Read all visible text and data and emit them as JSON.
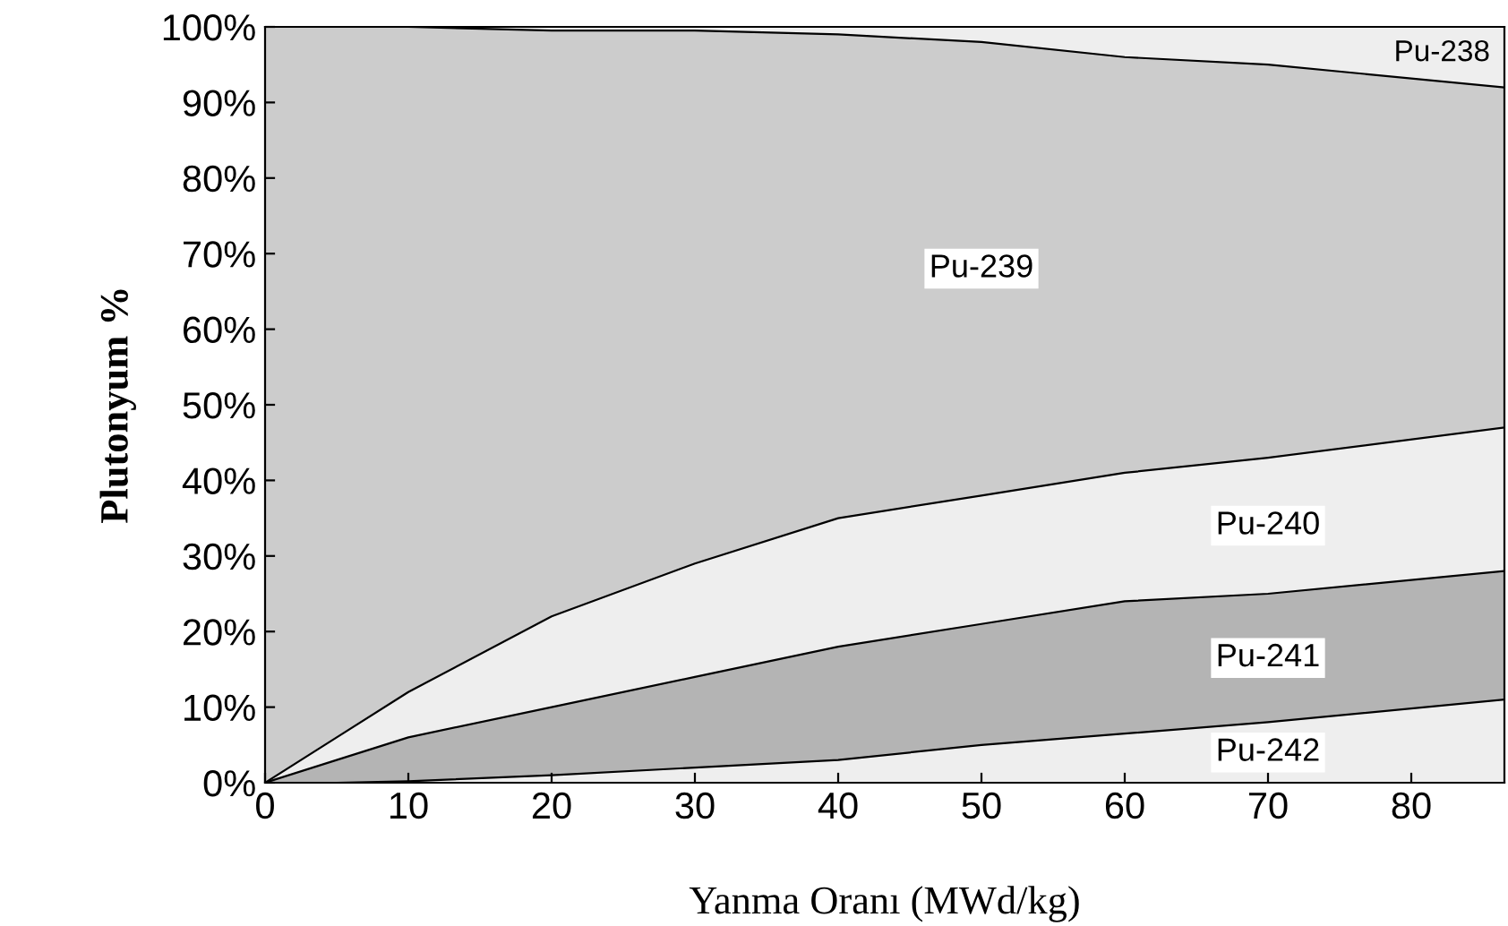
{
  "chart_data": {
    "type": "area",
    "stacked": true,
    "xlabel": "Yanma Oranı (MWd/kg)",
    "ylabel": "Plutonyum %",
    "x": [
      0,
      5,
      10,
      20,
      30,
      40,
      50,
      60,
      70,
      86.5
    ],
    "xlim": [
      0,
      86.5
    ],
    "xticks": [
      0,
      10,
      20,
      30,
      40,
      50,
      60,
      70,
      80
    ],
    "ylim": [
      0,
      100
    ],
    "yticks": [
      {
        "value": 0,
        "label": "0%"
      },
      {
        "value": 10,
        "label": "10%"
      },
      {
        "value": 20,
        "label": "20%"
      },
      {
        "value": 30,
        "label": "30%"
      },
      {
        "value": 40,
        "label": "40%"
      },
      {
        "value": 50,
        "label": "50%"
      },
      {
        "value": 60,
        "label": "60%"
      },
      {
        "value": 70,
        "label": "70%"
      },
      {
        "value": 80,
        "label": "80%"
      },
      {
        "value": 90,
        "label": "90%"
      },
      {
        "value": 100,
        "label": "100%"
      }
    ],
    "series": [
      {
        "name": "Pu-242",
        "color": "#eeeeee",
        "values": [
          0,
          0,
          0.2,
          1,
          2,
          3,
          5,
          6.5,
          8,
          11
        ]
      },
      {
        "name": "Pu-241",
        "color": "#b4b4b4",
        "values": [
          0,
          3,
          5.8,
          9,
          12,
          15,
          16,
          17.5,
          17,
          17
        ]
      },
      {
        "name": "Pu-240",
        "color": "#eeeeee",
        "values": [
          0,
          3,
          6,
          12,
          15,
          17,
          17,
          17,
          18,
          19
        ]
      },
      {
        "name": "Pu-239",
        "color": "#cccccc",
        "values": [
          100,
          94,
          88,
          77.5,
          70.5,
          64,
          60,
          55,
          52,
          45
        ]
      },
      {
        "name": "Pu-238",
        "color": "#eeeeee",
        "values": [
          0,
          0,
          0,
          0.5,
          0.5,
          1,
          2,
          4,
          5,
          8
        ]
      }
    ],
    "grid": false,
    "legend": false
  }
}
